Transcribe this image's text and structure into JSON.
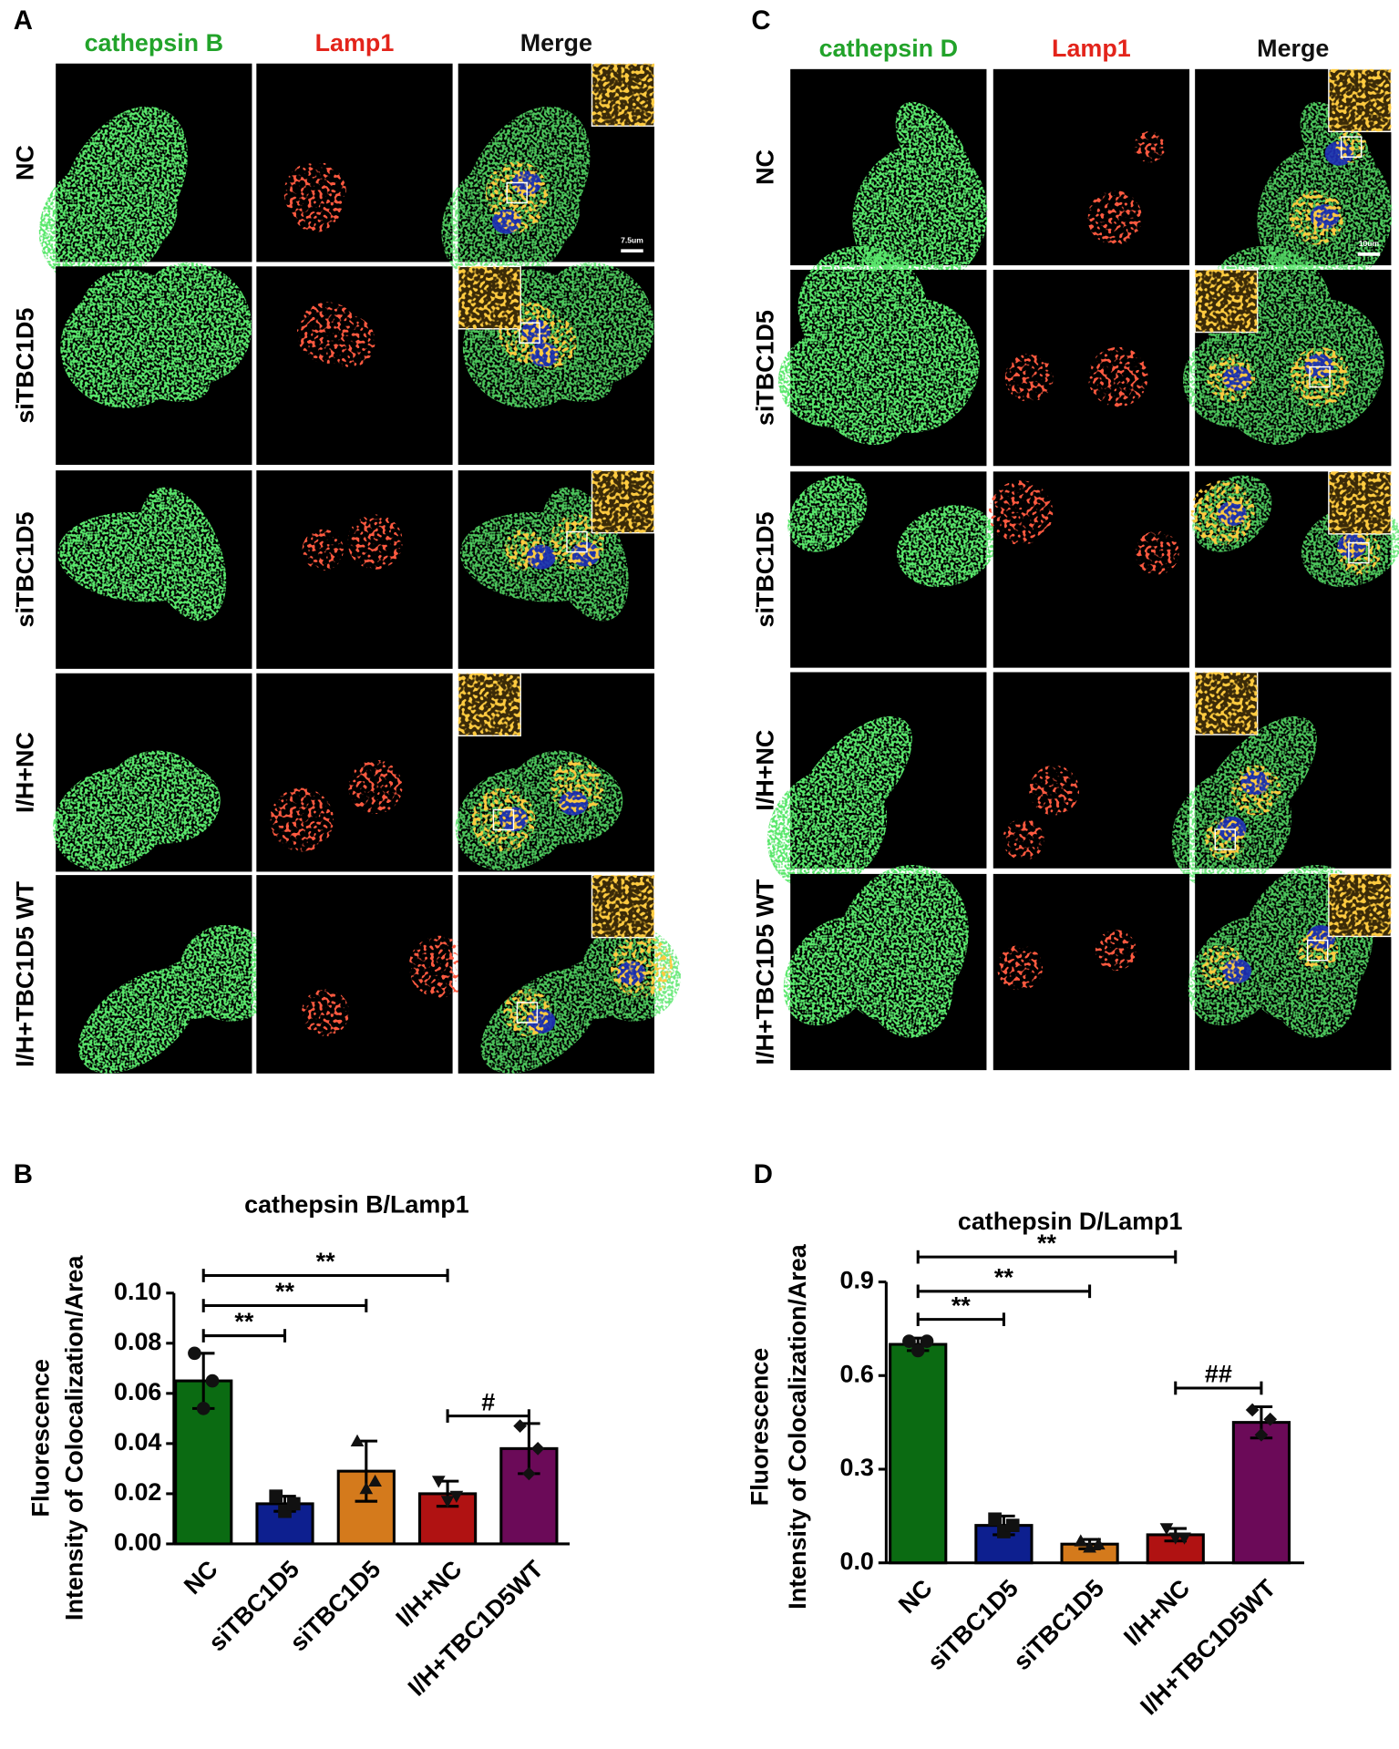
{
  "panels": [
    {
      "letter": "A",
      "columns": [
        "cathepsin B",
        "Lamp1",
        "Merge"
      ],
      "rows": [
        "NC",
        "siTBC1D5",
        "siTBC1D5",
        "I/H+NC",
        "I/H+TBC1D5 WT"
      ],
      "scale_bar": "7.5um"
    },
    {
      "letter": "C",
      "columns": [
        "cathepsin D",
        "Lamp1",
        "Merge"
      ],
      "rows": [
        "NC",
        "siTBC1D5",
        "siTBC1D5",
        "I/H+NC",
        "I/H+TBC1D5 WT"
      ],
      "scale_bar": "10um"
    }
  ],
  "chart_data": [
    {
      "type": "bar",
      "panel": "B",
      "title": "cathepsin B/Lamp1",
      "ylabel": [
        "Fluorescence",
        "Intensity of Colocalization/Area"
      ],
      "categories": [
        "NC",
        "siTBC1D5",
        "siTBC1D5",
        "I/H+NC",
        "I/H+TBC1D5WT"
      ],
      "values": [
        0.065,
        0.016,
        0.029,
        0.02,
        0.038
      ],
      "errors": [
        0.011,
        0.003,
        0.012,
        0.005,
        0.01
      ],
      "points": [
        [
          0.076,
          0.054,
          0.065
        ],
        [
          0.019,
          0.013,
          0.016
        ],
        [
          0.041,
          0.022,
          0.025
        ],
        [
          0.025,
          0.017,
          0.019
        ],
        [
          0.047,
          0.028,
          0.038
        ]
      ],
      "markers": [
        "circle",
        "square",
        "triangle",
        "triangle-down",
        "diamond"
      ],
      "colors": [
        "#0b6b12",
        "#0d1f8f",
        "#d47a1c",
        "#b01212",
        "#6b0a58"
      ],
      "ylim": [
        0,
        0.1
      ],
      "yticks": [
        {
          "value": 0,
          "label": "0.00"
        },
        0.02,
        0.04,
        0.06,
        0.08,
        {
          "value": 0.1,
          "label": "0.10"
        }
      ],
      "annotations": [
        {
          "from": 0,
          "to": 1,
          "y": 0.083,
          "text": "**"
        },
        {
          "from": 0,
          "to": 2,
          "y": 0.095,
          "text": "**"
        },
        {
          "from": 0,
          "to": 3,
          "y": 0.107,
          "text": "**"
        },
        {
          "from": 3,
          "to": 4,
          "y": 0.051,
          "text": "#"
        }
      ]
    },
    {
      "type": "bar",
      "panel": "D",
      "title": "cathepsin D/Lamp1",
      "ylabel": [
        "Fluorescence",
        "Intensity of Colocalization/Area"
      ],
      "categories": [
        "NC",
        "siTBC1D5",
        "siTBC1D5",
        "I/H+NC",
        "I/H+TBC1D5WT"
      ],
      "values": [
        0.7,
        0.12,
        0.06,
        0.09,
        0.45
      ],
      "errors": [
        0.02,
        0.03,
        0.015,
        0.02,
        0.05
      ],
      "points": [
        [
          0.71,
          0.68,
          0.71
        ],
        [
          0.14,
          0.1,
          0.12
        ],
        [
          0.07,
          0.05,
          0.06
        ],
        [
          0.11,
          0.08,
          0.08
        ],
        [
          0.49,
          0.41,
          0.46
        ]
      ],
      "markers": [
        "circle",
        "square",
        "triangle",
        "triangle-down",
        "diamond"
      ],
      "colors": [
        "#0b6b12",
        "#0d1f8f",
        "#d47a1c",
        "#b01212",
        "#6b0a58"
      ],
      "ylim": [
        0,
        0.9
      ],
      "yticks": [
        {
          "value": 0,
          "label": "0.0"
        },
        0.3,
        0.6,
        0.9
      ],
      "annotations": [
        {
          "from": 0,
          "to": 1,
          "y": 0.78,
          "text": "**"
        },
        {
          "from": 0,
          "to": 2,
          "y": 0.87,
          "text": "**"
        },
        {
          "from": 0,
          "to": 3,
          "y": 0.98,
          "text": "**"
        },
        {
          "from": 3,
          "to": 4,
          "y": 0.56,
          "text": "##"
        }
      ]
    }
  ]
}
